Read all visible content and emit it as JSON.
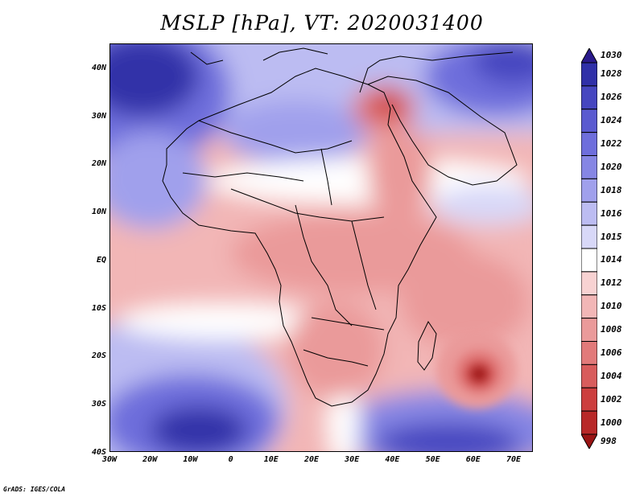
{
  "title": "MSLP [hPa], VT: 2020031400",
  "credit": "GrADS: IGES/COLA",
  "lat_labels": [
    "40N",
    "30N",
    "20N",
    "10N",
    "EQ",
    "10S",
    "20S",
    "30S",
    "40S"
  ],
  "lon_labels": [
    "30W",
    "20W",
    "10W",
    "0",
    "10E",
    "20E",
    "30E",
    "40E",
    "50E",
    "60E",
    "70E"
  ],
  "colorbar": {
    "levels": [
      "1030",
      "1028",
      "1026",
      "1024",
      "1022",
      "1020",
      "1018",
      "1016",
      "1015",
      "1014",
      "1012",
      "1010",
      "1008",
      "1006",
      "1004",
      "1002",
      "1000",
      "998"
    ],
    "colors": [
      "#2a1a8c",
      "#3030a8",
      "#4646c0",
      "#5a5ad0",
      "#6e6edc",
      "#8686e4",
      "#a0a0ec",
      "#bcbcf2",
      "#d8d8f8",
      "#ffffff",
      "#f8d2d2",
      "#f2b6b6",
      "#ea9a9a",
      "#e27a7a",
      "#d85c5c",
      "#cc3e3e",
      "#b82828",
      "#9a1414"
    ]
  }
}
